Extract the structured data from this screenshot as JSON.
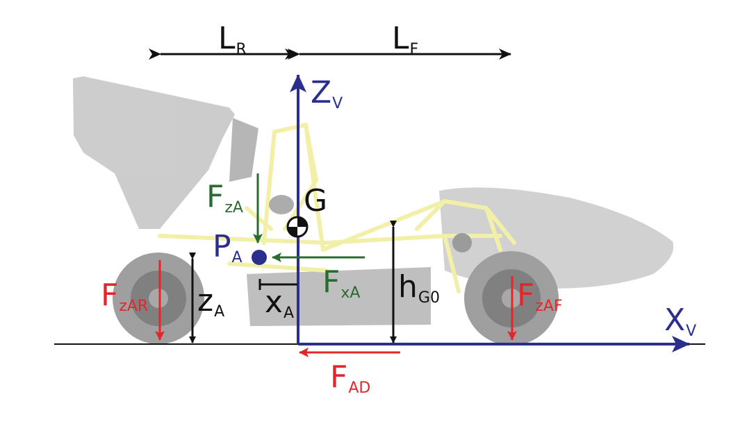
{
  "colors": {
    "axis": "#2b2e8c",
    "aero_force": "#2a6b2f",
    "reaction_force": "#e3262b",
    "dimension": "#111111",
    "car_body": "#bdbdbd",
    "chassis_frame": "#f2f0a0",
    "tyre": "#8f8f8f"
  },
  "labels": {
    "lr": {
      "main": "L",
      "sub": "R"
    },
    "lf": {
      "main": "L",
      "sub": "F"
    },
    "zv": {
      "main": "Z",
      "sub": "V"
    },
    "xv": {
      "main": "X",
      "sub": "V"
    },
    "g": {
      "main": "G"
    },
    "pa": {
      "main": "P",
      "sub": "A"
    },
    "fza": {
      "main": "F",
      "sub": "zA"
    },
    "fxa": {
      "main": "F",
      "sub": "xA"
    },
    "za": {
      "main": "z",
      "sub": "A"
    },
    "xa": {
      "main": "x",
      "sub": "A"
    },
    "hg0": {
      "main": "h",
      "sub": "G0"
    },
    "fzar": {
      "main": "F",
      "sub": "zAR"
    },
    "fzaf": {
      "main": "F",
      "sub": "zAF"
    },
    "fad": {
      "main": "F",
      "sub": "AD"
    }
  },
  "icons": {
    "center_of_gravity": "cog-symbol-icon",
    "aero_point": "aero-center-point-icon"
  }
}
